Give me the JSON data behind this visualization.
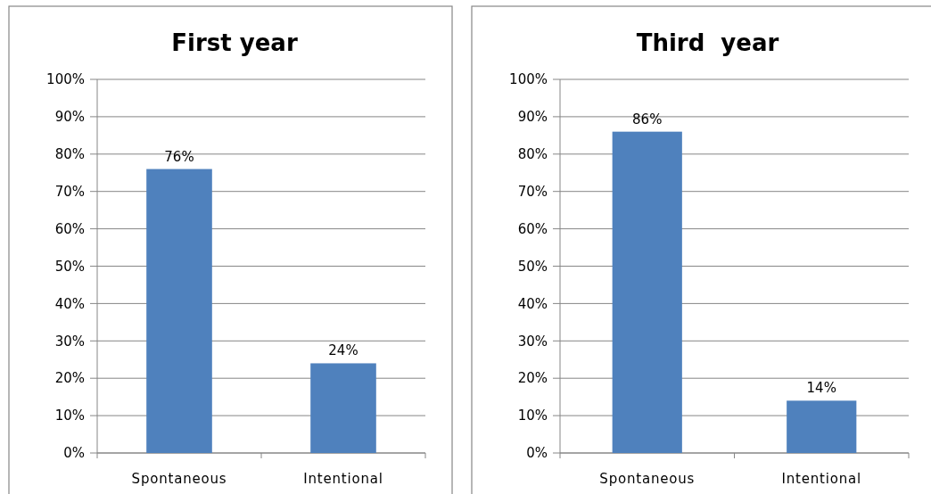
{
  "chart_data": [
    {
      "type": "bar",
      "title": "First year",
      "categories": [
        "Spontaneous",
        "Intentional"
      ],
      "values": [
        76,
        24
      ],
      "value_labels": [
        "76%",
        "24%"
      ],
      "color": "#4f81bd",
      "ylim": [
        0,
        100
      ],
      "yticks": [
        {
          "value": 0,
          "label": "0%"
        },
        {
          "value": 10,
          "label": "10%"
        },
        {
          "value": 20,
          "label": "20%"
        },
        {
          "value": 30,
          "label": "30%"
        },
        {
          "value": 40,
          "label": "40%"
        },
        {
          "value": 50,
          "label": "50%"
        },
        {
          "value": 60,
          "label": "60%"
        },
        {
          "value": 70,
          "label": "70%"
        },
        {
          "value": 80,
          "label": "80%"
        },
        {
          "value": 90,
          "label": "90%"
        },
        {
          "value": 100,
          "label": "100%"
        }
      ],
      "grid": "y"
    },
    {
      "type": "bar",
      "title": "Third  year",
      "categories": [
        "Spontaneous",
        "Intentional"
      ],
      "values": [
        86,
        14
      ],
      "value_labels": [
        "86%",
        "14%"
      ],
      "color": "#4f81bd",
      "ylim": [
        0,
        100
      ],
      "yticks": [
        {
          "value": 0,
          "label": "0%"
        },
        {
          "value": 10,
          "label": "10%"
        },
        {
          "value": 20,
          "label": "20%"
        },
        {
          "value": 30,
          "label": "30%"
        },
        {
          "value": 40,
          "label": "40%"
        },
        {
          "value": 50,
          "label": "50%"
        },
        {
          "value": 60,
          "label": "60%"
        },
        {
          "value": 70,
          "label": "70%"
        },
        {
          "value": 80,
          "label": "80%"
        },
        {
          "value": 90,
          "label": "90%"
        },
        {
          "value": 100,
          "label": "100%"
        }
      ],
      "grid": "y"
    }
  ]
}
